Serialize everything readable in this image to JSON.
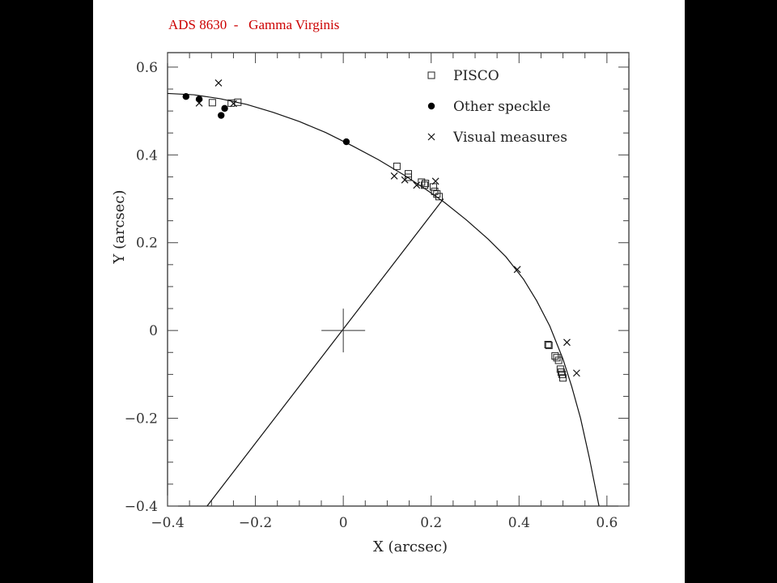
{
  "chart_data": {
    "type": "scatter",
    "title": "ADS 8630  -   Gamma Virginis",
    "title_color": "#cc0000",
    "xlabel": "X (arcsec)",
    "ylabel": "Y (arcsec)",
    "xlim": [
      -0.4,
      0.65
    ],
    "ylim": [
      -0.4,
      0.633
    ],
    "xticks": [
      -0.4,
      -0.2,
      0,
      0.2,
      0.4,
      0.6
    ],
    "xtick_labels": [
      "−0.4",
      "−0.2",
      "0",
      "0.2",
      "0.4",
      "0.6"
    ],
    "yticks": [
      -0.4,
      -0.2,
      0,
      0.2,
      0.4,
      0.6
    ],
    "ytick_labels": [
      "−0.4",
      "−0.2",
      "0",
      "0.2",
      "0.4",
      "0.6"
    ],
    "minor_tick_step": 0.05,
    "grid": false,
    "legend_position": "top-right",
    "series": [
      {
        "name": "PISCO",
        "marker": "open-square",
        "points": [
          [
            -0.298,
            0.519
          ],
          [
            -0.255,
            0.518
          ],
          [
            -0.24,
            0.52
          ],
          [
            0.122,
            0.374
          ],
          [
            0.148,
            0.357
          ],
          [
            0.148,
            0.349
          ],
          [
            0.178,
            0.338
          ],
          [
            0.187,
            0.335
          ],
          [
            0.185,
            0.331
          ],
          [
            0.205,
            0.327
          ],
          [
            0.208,
            0.317
          ],
          [
            0.213,
            0.311
          ],
          [
            0.218,
            0.305
          ],
          [
            0.466,
            -0.032
          ],
          [
            0.468,
            -0.034
          ],
          [
            0.482,
            -0.058
          ],
          [
            0.486,
            -0.062
          ],
          [
            0.49,
            -0.068
          ],
          [
            0.494,
            -0.088
          ],
          [
            0.496,
            -0.095
          ],
          [
            0.498,
            -0.1
          ],
          [
            0.5,
            -0.108
          ]
        ]
      },
      {
        "name": "Other speckle",
        "marker": "filled-circle",
        "points": [
          [
            -0.358,
            0.533
          ],
          [
            -0.328,
            0.527
          ],
          [
            -0.27,
            0.506
          ],
          [
            -0.278,
            0.49
          ],
          [
            0.007,
            0.43
          ]
        ]
      },
      {
        "name": "Visual measures",
        "marker": "cross",
        "points": [
          [
            -0.284,
            0.564
          ],
          [
            -0.328,
            0.518
          ],
          [
            -0.25,
            0.517
          ],
          [
            0.116,
            0.352
          ],
          [
            0.14,
            0.343
          ],
          [
            0.167,
            0.331
          ],
          [
            0.21,
            0.34
          ],
          [
            0.396,
            0.139
          ],
          [
            0.509,
            -0.027
          ],
          [
            0.531,
            -0.097
          ]
        ]
      }
    ],
    "orbit": {
      "name": "Fitted orbit",
      "points": [
        [
          -0.4,
          0.54
        ],
        [
          -0.34,
          0.537
        ],
        [
          -0.28,
          0.528
        ],
        [
          -0.22,
          0.515
        ],
        [
          -0.16,
          0.497
        ],
        [
          -0.1,
          0.476
        ],
        [
          -0.04,
          0.451
        ],
        [
          0.02,
          0.421
        ],
        [
          0.08,
          0.389
        ],
        [
          0.14,
          0.353
        ],
        [
          0.19,
          0.32
        ],
        [
          0.23,
          0.292
        ],
        [
          0.28,
          0.252
        ],
        [
          0.33,
          0.208
        ],
        [
          0.37,
          0.168
        ],
        [
          0.41,
          0.117
        ],
        [
          0.44,
          0.068
        ],
        [
          0.47,
          0.01
        ],
        [
          0.5,
          -0.065
        ],
        [
          0.52,
          -0.128
        ],
        [
          0.54,
          -0.2
        ],
        [
          0.56,
          -0.29
        ],
        [
          0.575,
          -0.365
        ],
        [
          0.582,
          -0.4
        ]
      ]
    },
    "line_of_nodes": {
      "from": [
        -0.31,
        -0.4
      ],
      "to": [
        0.228,
        0.3
      ]
    },
    "primary_star": [
      0,
      0
    ]
  }
}
